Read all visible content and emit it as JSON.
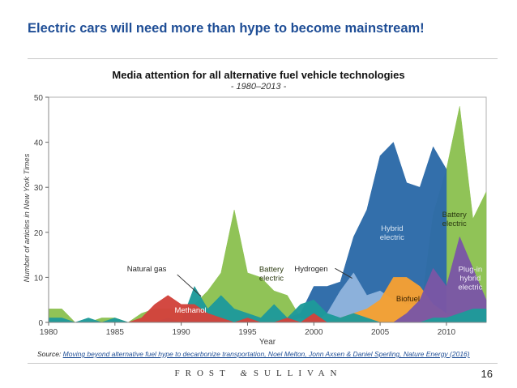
{
  "slide": {
    "title": "Electric cars will need more than hype to become mainstream!",
    "page_number": "16"
  },
  "footer": {
    "brand_left": "FROST",
    "brand_amp": "&",
    "brand_right": "SULLIVAN"
  },
  "source": {
    "prefix": "Source: ",
    "link_text": "Moving beyond alternative fuel hype to decarbonize transportation, Noel Melton,  Jonn Axsen &  Daniel Sperling, Nature Energy (2016)"
  },
  "colors": {
    "title_blue": "#1f4e96",
    "battery_electric": "#8cc152",
    "hybrid_electric": "#2c6aa8",
    "hydrogen": "#8fb4dc",
    "biofuel": "#f5a033",
    "natural_gas": "#1e9a9a",
    "methanol": "#d2433c",
    "plugin_hybrid": "#7a57a5"
  },
  "chart_data": {
    "type": "area",
    "title": "Media attention for all alternative fuel vehicle technologies",
    "subtitle": "- 1980–2013 -",
    "xlabel": "Year",
    "ylabel": "Number of articles in New York Times",
    "xlim": [
      1980,
      2013
    ],
    "ylim": [
      0,
      50
    ],
    "xticks": [
      "1980",
      "1985",
      "1990",
      "1995",
      "2000",
      "2005",
      "2010"
    ],
    "yticks": [
      "0",
      "10",
      "20",
      "30",
      "40",
      "50"
    ],
    "grid": false,
    "series": [
      {
        "name": "Battery electric",
        "label": "Battery\nelectric",
        "color": "#8cc152",
        "x": [
          1980,
          1981,
          1982,
          1983,
          1984,
          1985,
          1986,
          1987,
          1988,
          1989,
          1990,
          1991,
          1992,
          1993,
          1994,
          1995,
          1996,
          1997,
          1998,
          1999,
          2000,
          2001,
          2002,
          2003,
          2004,
          2005,
          2006,
          2007,
          2008,
          2009,
          2010,
          2011,
          2012,
          2013
        ],
        "y": [
          3,
          3,
          0,
          0,
          1,
          1,
          0,
          2,
          3,
          3,
          3,
          4,
          7,
          11,
          25,
          11,
          10,
          7,
          6,
          1,
          0,
          1,
          2,
          1,
          4,
          1,
          0,
          0,
          1,
          24,
          34,
          48,
          23,
          29
        ]
      },
      {
        "name": "Hybrid electric",
        "label": "Hybrid\nelectric",
        "color": "#2c6aa8",
        "x": [
          1997,
          1998,
          1999,
          2000,
          2001,
          2002,
          2003,
          2004,
          2005,
          2006,
          2007,
          2008,
          2009,
          2010
        ],
        "y": [
          0,
          1,
          2,
          8,
          8,
          9,
          19,
          25,
          37,
          40,
          31,
          30,
          39,
          34
        ]
      },
      {
        "name": "Hydrogen",
        "label": "Hydrogen",
        "color": "#8fb4dc",
        "x": [
          1997,
          1998,
          1999,
          2000,
          2001,
          2002,
          2003,
          2004,
          2005,
          2006,
          2007,
          2008,
          2009,
          2010,
          2011,
          2012,
          2013
        ],
        "y": [
          0,
          0,
          1,
          0,
          2,
          7,
          11,
          6,
          7,
          5,
          4,
          4,
          3,
          2,
          2,
          1,
          0
        ]
      },
      {
        "name": "Biofuel",
        "label": "Biofuel",
        "color": "#f5a033",
        "x": [
          1995,
          1996,
          1997,
          1998,
          1999,
          2000,
          2001,
          2002,
          2003,
          2004,
          2005,
          2006,
          2007,
          2008,
          2009,
          2010,
          2011,
          2012,
          2013
        ],
        "y": [
          0,
          0,
          1,
          0,
          0,
          1,
          0,
          1,
          2,
          3,
          5,
          10,
          10,
          8,
          4,
          2,
          2,
          3,
          3
        ]
      },
      {
        "name": "Plug-in hybrid electric",
        "label": "Plug-in\nhybrid\nelectric",
        "color": "#7a57a5",
        "x": [
          2006,
          2007,
          2008,
          2009,
          2010,
          2011,
          2012,
          2013
        ],
        "y": [
          0,
          2,
          5,
          12,
          8,
          19,
          12,
          5
        ]
      },
      {
        "name": "Natural gas",
        "label": "Natural gas",
        "color": "#1e9a9a",
        "x": [
          1980,
          1981,
          1982,
          1983,
          1984,
          1985,
          1986,
          1987,
          1988,
          1989,
          1990,
          1991,
          1992,
          1993,
          1994,
          1995,
          1996,
          1997,
          1998,
          1999,
          2000,
          2001,
          2002,
          2003,
          2004,
          2005,
          2006,
          2007,
          2008,
          2009,
          2010,
          2011,
          2012,
          2013
        ],
        "y": [
          1,
          1,
          0,
          1,
          0,
          1,
          0,
          0,
          0,
          1,
          0,
          8,
          3,
          6,
          3,
          2,
          1,
          4,
          1,
          4,
          5,
          2,
          1,
          2,
          1,
          0,
          0,
          0,
          0,
          1,
          1,
          2,
          3,
          3
        ]
      },
      {
        "name": "Methanol",
        "label": "Methanol",
        "color": "#d2433c",
        "x": [
          1980,
          1981,
          1982,
          1983,
          1984,
          1985,
          1986,
          1987,
          1988,
          1989,
          1990,
          1991,
          1992,
          1993,
          1994,
          1995,
          1996,
          1997,
          1998,
          1999,
          2000,
          2001,
          2002,
          2003,
          2004,
          2005,
          2006,
          2007,
          2008,
          2009,
          2010,
          2011,
          2012,
          2013
        ],
        "y": [
          0,
          0,
          0,
          0,
          0,
          0,
          0,
          1,
          4,
          6,
          4,
          4,
          2,
          1,
          0,
          1,
          0,
          0,
          1,
          0,
          2,
          0,
          0,
          0,
          0,
          0,
          0,
          0,
          0,
          0,
          0,
          0,
          0,
          0
        ]
      }
    ],
    "annotations": [
      {
        "text": "Natural gas",
        "points_to": "Natural gas",
        "x": 1991
      },
      {
        "text": "Hydrogen",
        "points_to": "Hydrogen",
        "x": 2002
      }
    ]
  }
}
